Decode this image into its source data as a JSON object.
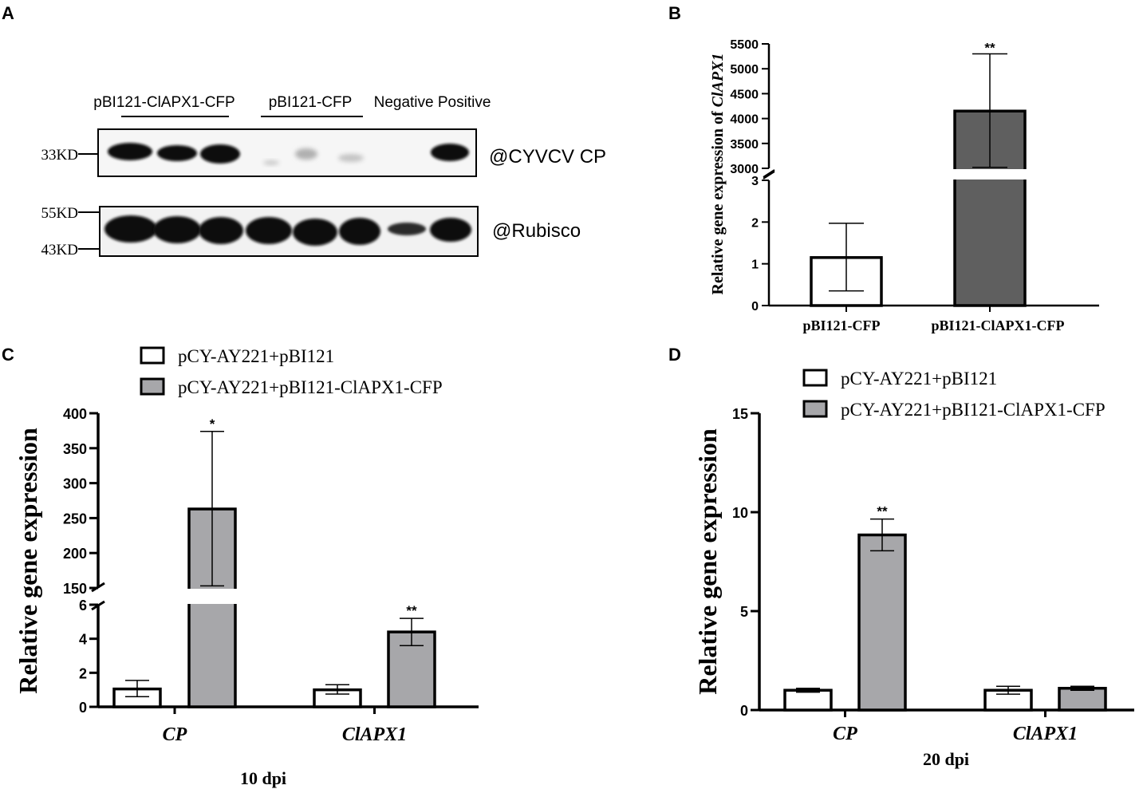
{
  "colors": {
    "white_bar": "#ffffff",
    "dark_bar": "#5f5f5f",
    "gray_bar": "#a7a7aa",
    "axis": "#000000"
  },
  "panelA": {
    "letter": "A",
    "groups": [
      {
        "label": "pBI121-ClAPX1-CFP",
        "x": 206,
        "line": [
          152,
          287
        ]
      },
      {
        "label": "pBI121-CFP",
        "x": 389,
        "line": [
          327,
          455
        ]
      },
      {
        "label": "Negative Positive",
        "x": 542,
        "line": null
      }
    ],
    "blot1": {
      "label": "@CYVCV CP",
      "markers": [
        {
          "label": "33KD",
          "y": 193
        }
      ]
    },
    "blot2": {
      "label": "@Rubisco",
      "markers": [
        {
          "label": "55KD",
          "y": 266
        },
        {
          "label": "43KD",
          "y": 312
        }
      ]
    }
  },
  "chart_data": [
    {
      "panel": "B",
      "type": "bar",
      "categories": [
        "pBI121-CFP",
        "pBI121-ClAPX1-CFP"
      ],
      "values": [
        1.15,
        4150
      ],
      "errors": [
        [
          0.35,
          1.97
        ],
        [
          3020,
          5300
        ]
      ],
      "significance": [
        "",
        "**"
      ],
      "bar_colors": [
        "#ffffff",
        "#5f5f5f"
      ],
      "ylabel_prefix": "Relative gene expression of ",
      "ylabel_gene": "ClAPX1",
      "y_lower": {
        "range": [
          0,
          3
        ],
        "ticks": [
          "0",
          "1",
          "2",
          "3"
        ]
      },
      "y_upper": {
        "range": [
          3000,
          5500
        ],
        "ticks": [
          "3000",
          "3500",
          "4000",
          "4500",
          "5000",
          "5500"
        ]
      },
      "axis_break": true,
      "grid": false
    },
    {
      "panel": "C",
      "type": "bar",
      "categories": [
        "CP",
        "ClAPX1"
      ],
      "series": [
        {
          "name": "pCY-AY221+pBI121",
          "values": [
            1.05,
            1.0
          ],
          "errors": [
            [
              0.6,
              1.55
            ],
            [
              0.75,
              1.3
            ]
          ],
          "significance": [
            "",
            ""
          ]
        },
        {
          "name": "pCY-AY221+pBI121-ClAPX1-CFP",
          "values": [
            263,
            4.4
          ],
          "errors": [
            [
              153,
              374
            ],
            [
              3.6,
              5.2
            ]
          ],
          "significance": [
            "*",
            "**"
          ]
        }
      ],
      "ylabel": "Relative gene expression",
      "xlabel": "10 dpi",
      "y_lower": {
        "range": [
          0,
          6
        ],
        "ticks": [
          "0",
          "2",
          "4",
          "6"
        ]
      },
      "y_upper": {
        "range": [
          150,
          400
        ],
        "ticks": [
          "150",
          "200",
          "250",
          "300",
          "350",
          "400"
        ]
      },
      "axis_break": true,
      "legend_position": "top",
      "grid": false
    },
    {
      "panel": "D",
      "type": "bar",
      "categories": [
        "CP",
        "ClAPX1"
      ],
      "series": [
        {
          "name": "pCY-AY221+pBI121",
          "values": [
            1.0,
            1.0
          ],
          "errors": [
            [
              0.9,
              1.1
            ],
            [
              0.8,
              1.2
            ]
          ],
          "significance": [
            "",
            ""
          ]
        },
        {
          "name": "pCY-AY221+pBI121-ClAPX1-CFP",
          "values": [
            8.85,
            1.1
          ],
          "errors": [
            [
              8.05,
              9.65
            ],
            [
              1.0,
              1.2
            ]
          ],
          "significance": [
            "**",
            ""
          ]
        }
      ],
      "ylabel": "Relative gene expression",
      "xlabel": "20 dpi",
      "ylim": [
        0,
        15
      ],
      "ticks": [
        "0",
        "5",
        "10",
        "15"
      ],
      "legend_position": "top-right",
      "grid": false
    }
  ]
}
